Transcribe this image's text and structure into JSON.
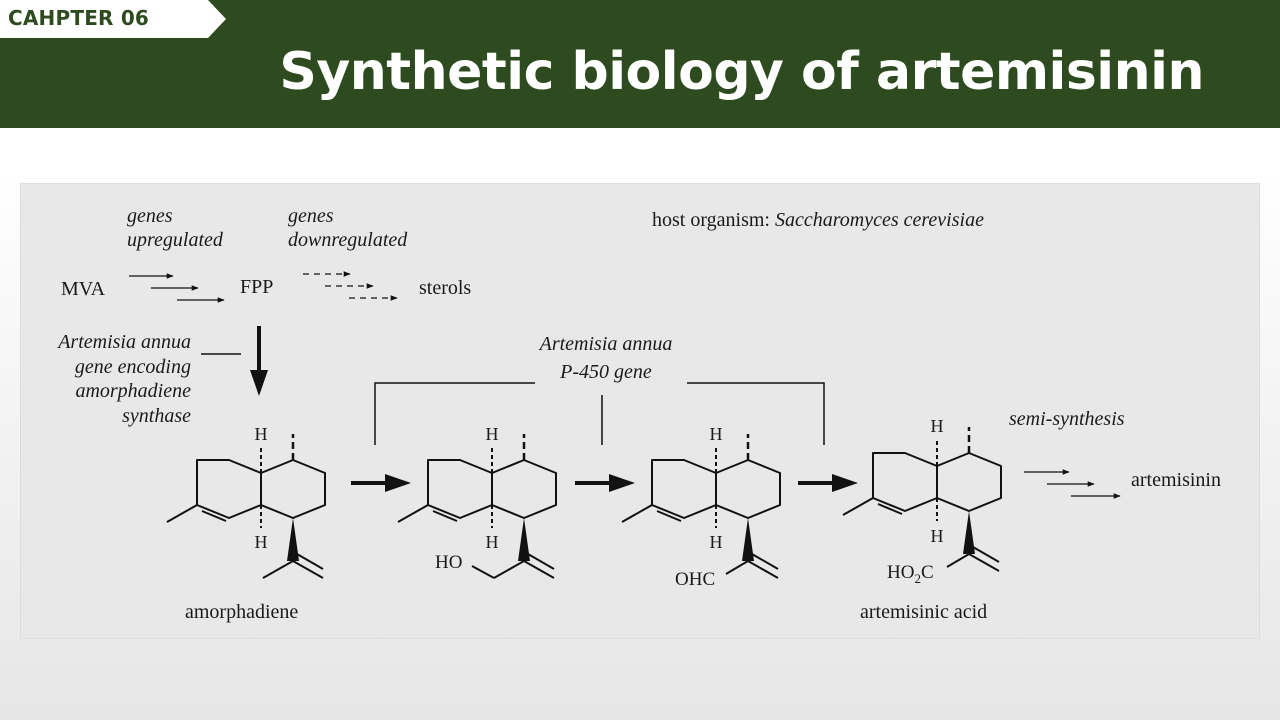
{
  "header": {
    "chapter_label": "CAHPTER 06",
    "title": "Synthetic biology of artemisinin"
  },
  "colors": {
    "header_green": "#2d4b1f",
    "panel_gray": "#e8e8e8"
  },
  "diagram": {
    "genes_up": [
      "genes",
      "upregulated"
    ],
    "genes_down": [
      "genes",
      "downregulated"
    ],
    "host_prefix": "host organism: ",
    "host_name": "Saccharomyces cerevisiae",
    "mva": "MVA",
    "fpp": "FPP",
    "sterols": "sterols",
    "synthase_gene": [
      "Artemisia annua",
      "gene encoding",
      "amorphadiene",
      "synthase"
    ],
    "p450_gene": [
      "Artemisia annua",
      "P-450 gene"
    ],
    "semi_synthesis": "semi-synthesis",
    "artemisinin": "artemisinin",
    "h": "H",
    "ho": "HO",
    "ohc": "OHC",
    "ho2c_a": "HO",
    "ho2c_sub": "2",
    "ho2c_b": "C",
    "amorphadiene": "amorphadiene",
    "artemisinic_acid": "artemisinic acid"
  }
}
